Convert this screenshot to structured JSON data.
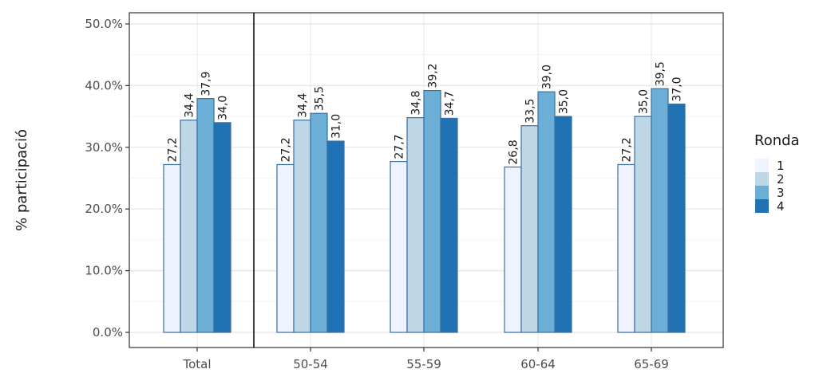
{
  "chart_data": {
    "type": "bar",
    "title": "",
    "xlabel": "",
    "ylabel": "% participació",
    "ylim": [
      0,
      50
    ],
    "yticks": [
      0,
      10,
      20,
      30,
      40,
      50
    ],
    "ytick_labels": [
      "0.0%",
      "10.0%",
      "20.0%",
      "30.0%",
      "40.0%",
      "50.0%"
    ],
    "grid": true,
    "legend_position": "right",
    "legend_title": "Ronda",
    "categories": [
      "Total",
      "50-54",
      "55-59",
      "60-64",
      "65-69"
    ],
    "series": [
      {
        "name": "1",
        "color": "#eff3ff",
        "values": [
          27.2,
          27.2,
          27.7,
          26.8,
          27.2
        ],
        "labels": [
          "27,2",
          "27,2",
          "27,7",
          "26,8",
          "27,2"
        ]
      },
      {
        "name": "2",
        "color": "#bdd7e7",
        "values": [
          34.4,
          34.4,
          34.8,
          33.5,
          35.0
        ],
        "labels": [
          "34,4",
          "34,4",
          "34,8",
          "33,5",
          "35,0"
        ]
      },
      {
        "name": "3",
        "color": "#6baed6",
        "values": [
          37.9,
          35.5,
          39.2,
          39.0,
          39.5
        ],
        "labels": [
          "37,9",
          "35,5",
          "39,2",
          "39,0",
          "39,5"
        ]
      },
      {
        "name": "4",
        "color": "#2171b5",
        "values": [
          34.0,
          31.0,
          34.7,
          35.0,
          37.0
        ],
        "labels": [
          "34,0",
          "31,0",
          "34,7",
          "35,0",
          "37,0"
        ]
      }
    ],
    "bar_outline_color": "#3b6fa0",
    "separator_after_category": "Total"
  }
}
